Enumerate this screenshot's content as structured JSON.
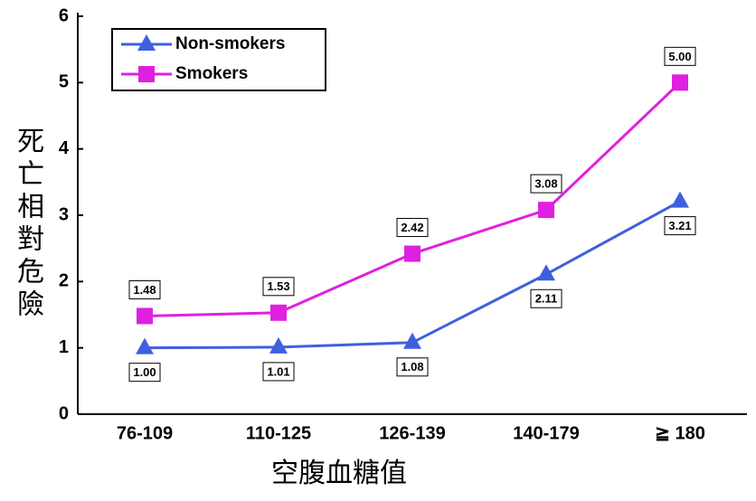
{
  "chart_data": {
    "type": "line",
    "ylabel": "死亡相對危險",
    "xlabel": "空腹血糖值",
    "categories": [
      "76-109",
      "110-125",
      "126-139",
      "140-179",
      "≧ 180"
    ],
    "series": [
      {
        "name": "Non-smokers",
        "color": "#3f5fe0",
        "marker": "triangle",
        "label_side": "below",
        "values": [
          1.0,
          1.01,
          1.08,
          2.11,
          3.21
        ],
        "value_labels": [
          "1.00",
          "1.01",
          "1.08",
          "2.11",
          "3.21"
        ]
      },
      {
        "name": "Smokers",
        "color": "#e020e0",
        "marker": "square",
        "label_side": "above",
        "values": [
          1.48,
          1.53,
          2.42,
          3.08,
          5.0
        ],
        "value_labels": [
          "1.48",
          "1.53",
          "2.42",
          "3.08",
          "5.00"
        ]
      }
    ],
    "ylim": [
      0,
      6
    ],
    "yticks": [
      0,
      1,
      2,
      3,
      4,
      5,
      6
    ],
    "grid": false,
    "legend": "upper left"
  }
}
